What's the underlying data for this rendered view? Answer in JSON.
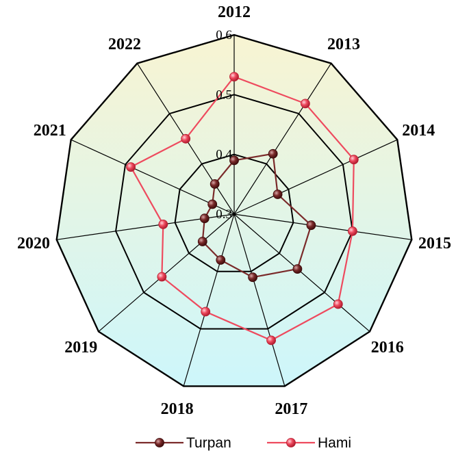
{
  "chart_data": {
    "type": "radar",
    "categories": [
      "2012",
      "2013",
      "2014",
      "2015",
      "2016",
      "2017",
      "2018",
      "2019",
      "2020",
      "2021",
      "2022"
    ],
    "rlim": [
      0.3,
      0.6
    ],
    "ticks": [
      "0.3",
      "0.4",
      "0.5",
      "0.6"
    ],
    "tick_values": [
      0.3,
      0.4,
      0.5,
      0.6
    ],
    "grid": true,
    "legend_position": "bottom",
    "series": [
      {
        "name": "Turpan",
        "color": "#7a2a2a",
        "values": [
          0.39,
          0.42,
          0.38,
          0.43,
          0.44,
          0.41,
          0.38,
          0.37,
          0.35,
          0.34,
          0.36
        ]
      },
      {
        "name": "Hami",
        "color": "#ee4a5e",
        "values": [
          0.53,
          0.52,
          0.52,
          0.5,
          0.53,
          0.52,
          0.47,
          0.46,
          0.42,
          0.49,
          0.45
        ]
      }
    ],
    "fill_gradient": {
      "top": "#f8f4d2",
      "bottom": "#cdf6fb"
    }
  }
}
